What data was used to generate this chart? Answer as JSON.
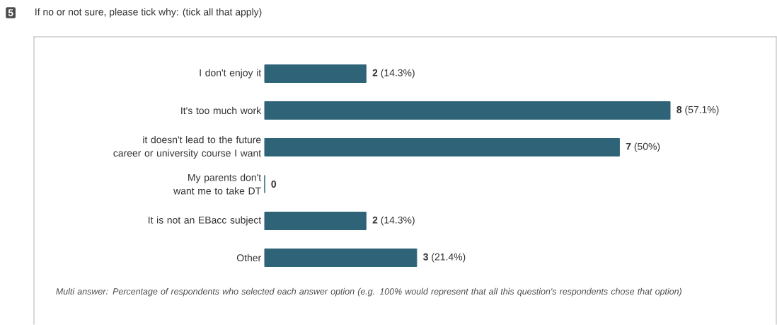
{
  "chart_data": {
    "type": "bar",
    "orientation": "horizontal",
    "title": "If no or not sure, please tick why: (tick all that apply)",
    "categories": [
      "I don't enjoy it",
      "It's too much work",
      "it doesn't lead to the future career or university course I want",
      "My parents don't want me to take DT",
      "It is not an EBacc subject",
      "Other"
    ],
    "values": [
      2,
      8,
      7,
      0,
      2,
      3
    ],
    "value_labels": [
      "**2** (14.3%)",
      "**8** (57.1%)",
      "**7** (50%)",
      "**0**",
      "**2** (14.3%)",
      "**3** (21.4%)"
    ],
    "color": "#2e6378",
    "annotations": [
      "5",
      "Multi answer: Percentage of respondents who selected each answer option (e.g. 100% would represent that all this question's respondents chose that option)"
    ]
  }
}
